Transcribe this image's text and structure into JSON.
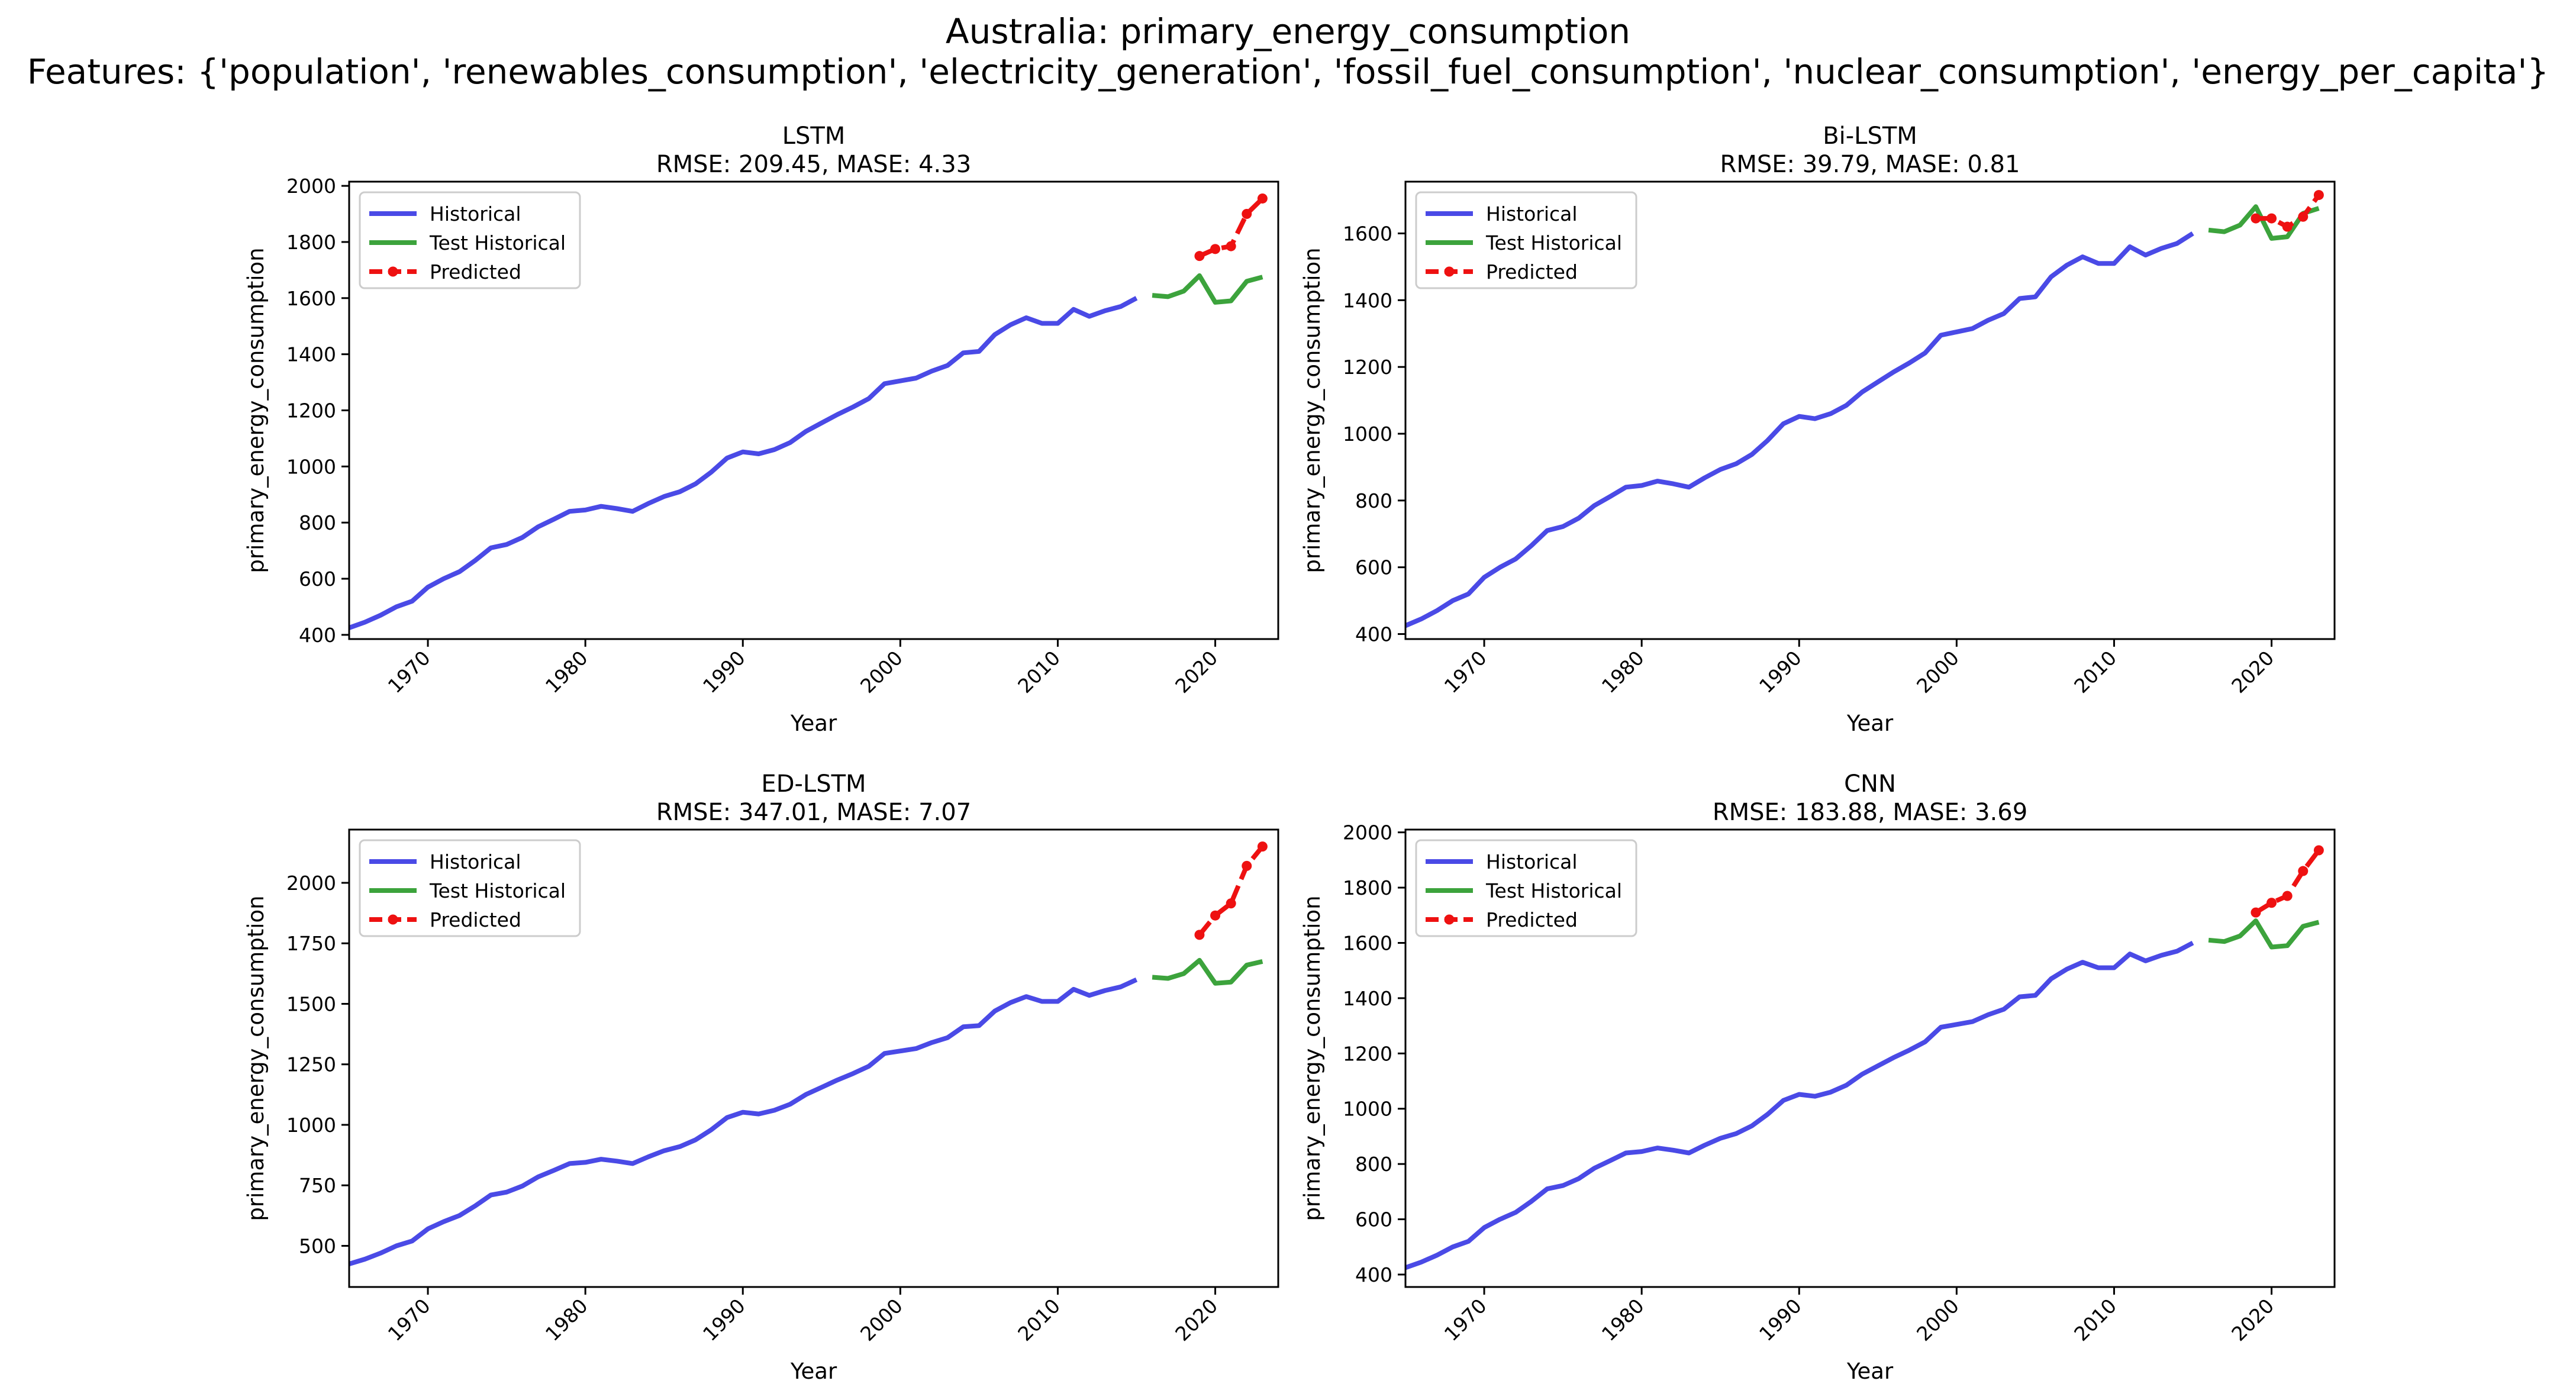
{
  "figure": {
    "title_line1": "Australia: primary_energy_consumption",
    "title_line2": "Features: {'population', 'renewables_consumption', 'electricity_generation', 'fossil_fuel_consumption', 'nuclear_consumption', 'energy_per_capita'}"
  },
  "colors": {
    "historical": "#4a4ae6",
    "test": "#3ca33c",
    "predicted": "#ee1111"
  },
  "legend_labels": [
    "Historical",
    "Test Historical",
    "Predicted"
  ],
  "historical_years": [
    1965,
    1966,
    1967,
    1968,
    1969,
    1970,
    1971,
    1972,
    1973,
    1974,
    1975,
    1976,
    1977,
    1978,
    1979,
    1980,
    1981,
    1982,
    1983,
    1984,
    1985,
    1986,
    1987,
    1988,
    1989,
    1990,
    1991,
    1992,
    1993,
    1994,
    1995,
    1996,
    1997,
    1998,
    1999,
    2000,
    2001,
    2002,
    2003,
    2004,
    2005,
    2006,
    2007,
    2008,
    2009,
    2010,
    2011,
    2012,
    2013,
    2014,
    2015
  ],
  "historical_values": [
    425,
    445,
    470,
    500,
    520,
    570,
    600,
    625,
    665,
    710,
    722,
    747,
    785,
    812,
    840,
    845,
    858,
    850,
    840,
    868,
    893,
    910,
    938,
    980,
    1030,
    1052,
    1045,
    1060,
    1085,
    1125,
    1155,
    1185,
    1212,
    1242,
    1295,
    1305,
    1315,
    1340,
    1360,
    1405,
    1410,
    1470,
    1505,
    1530,
    1510,
    1510,
    1560,
    1535,
    1555,
    1570,
    1600
  ],
  "test_years": [
    2016,
    2017,
    2018,
    2019,
    2020,
    2021,
    2022,
    2023
  ],
  "test_values": [
    1610,
    1605,
    1625,
    1680,
    1585,
    1590,
    1660,
    1675
  ],
  "pred_years": [
    2019,
    2020,
    2021,
    2022,
    2023
  ],
  "chart_data": [
    {
      "type": "line",
      "title": "LSTM",
      "subtitle": "RMSE: 209.45, MASE: 4.33",
      "xlabel": "Year",
      "ylabel": "primary_energy_consumption",
      "xlim": [
        1965,
        2024
      ],
      "ylim": [
        385,
        2015
      ],
      "yticks": [
        400,
        600,
        800,
        1000,
        1200,
        1400,
        1600,
        1800,
        2000
      ],
      "xticks": [
        1970,
        1980,
        1990,
        2000,
        2010,
        2020
      ],
      "legend": "upper-left",
      "grid": false,
      "predicted_values": [
        1750,
        1775,
        1785,
        1900,
        1955
      ]
    },
    {
      "type": "line",
      "title": "Bi-LSTM",
      "subtitle": "RMSE: 39.79, MASE: 0.81",
      "xlabel": "Year",
      "ylabel": "primary_energy_consumption",
      "xlim": [
        1965,
        2024
      ],
      "ylim": [
        385,
        1755
      ],
      "yticks": [
        400,
        600,
        800,
        1000,
        1200,
        1400,
        1600
      ],
      "xticks": [
        1970,
        1980,
        1990,
        2000,
        2010,
        2020
      ],
      "legend": "upper-left",
      "grid": false,
      "predicted_values": [
        1645,
        1645,
        1620,
        1650,
        1715
      ]
    },
    {
      "type": "line",
      "title": "ED-LSTM",
      "subtitle": "RMSE: 347.01, MASE: 7.07",
      "xlabel": "Year",
      "ylabel": "primary_energy_consumption",
      "xlim": [
        1965,
        2024
      ],
      "ylim": [
        330,
        2220
      ],
      "yticks": [
        500,
        750,
        1000,
        1250,
        1500,
        1750,
        2000
      ],
      "xticks": [
        1970,
        1980,
        1990,
        2000,
        2010,
        2020
      ],
      "legend": "upper-left",
      "grid": false,
      "predicted_values": [
        1785,
        1865,
        1915,
        2070,
        2150
      ]
    },
    {
      "type": "line",
      "title": "CNN",
      "subtitle": "RMSE: 183.88, MASE: 3.69",
      "xlabel": "Year",
      "ylabel": "primary_energy_consumption",
      "xlim": [
        1965,
        2024
      ],
      "ylim": [
        355,
        2010
      ],
      "yticks": [
        400,
        600,
        800,
        1000,
        1200,
        1400,
        1600,
        1800,
        2000
      ],
      "xticks": [
        1970,
        1980,
        1990,
        2000,
        2010,
        2020
      ],
      "legend": "upper-left",
      "grid": false,
      "predicted_values": [
        1710,
        1745,
        1770,
        1860,
        1935
      ]
    }
  ]
}
